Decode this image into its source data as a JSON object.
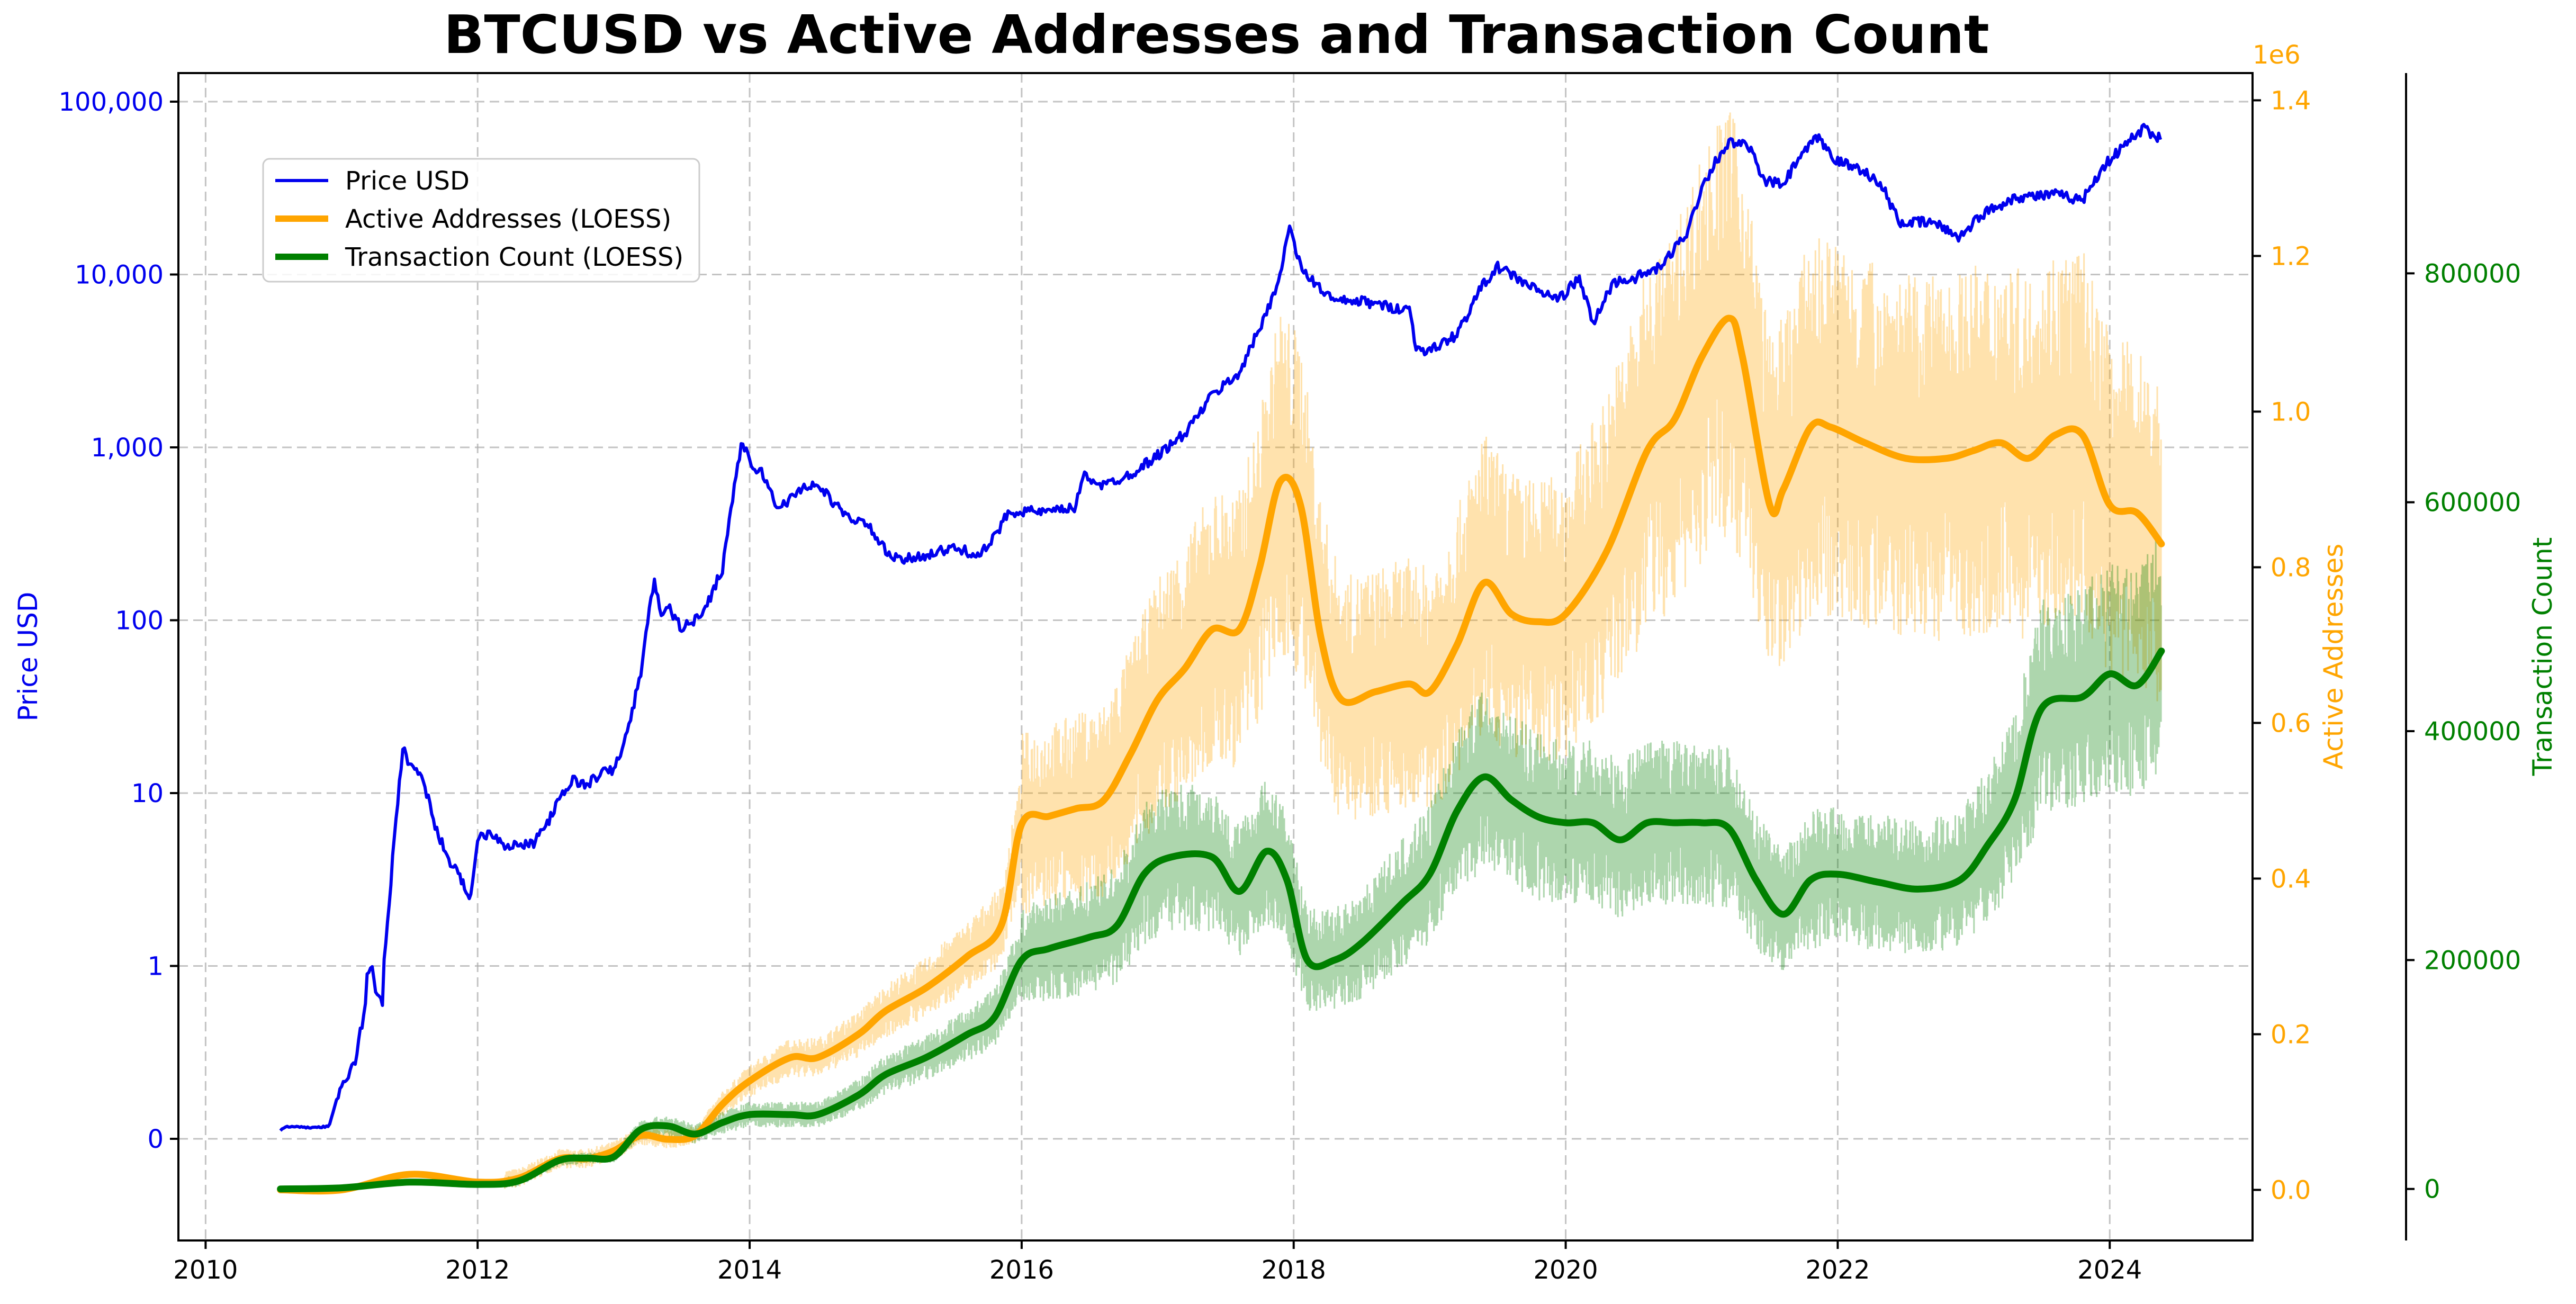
{
  "chart_data": {
    "type": "line",
    "title": "BTCUSD vs Active Addresses and Transaction Count",
    "xlabel": "",
    "x_ticks": [
      "2010",
      "2012",
      "2014",
      "2016",
      "2018",
      "2020",
      "2022",
      "2024"
    ],
    "xlim": [
      2009.8,
      2025.05
    ],
    "axes": {
      "price": {
        "label": "Price USD",
        "scale": "log",
        "ticks": [
          "0",
          "1",
          "10",
          "100",
          "1,000",
          "10,000",
          "100,000"
        ],
        "color": "#0000ee"
      },
      "active_addresses": {
        "label": "Active Addresses",
        "offset_text": "1e6",
        "ticks": [
          "0.0",
          "0.2",
          "0.4",
          "0.6",
          "0.8",
          "1.0",
          "1.2",
          "1.4"
        ],
        "ylim": [
          -0.065,
          1.435
        ],
        "color": "#ffa500"
      },
      "transaction_count": {
        "label": "Transaction Count",
        "ticks": [
          "0",
          "200000",
          "400000",
          "600000",
          "800000"
        ],
        "ylim": [
          -45000,
          975000
        ],
        "color": "#008000"
      }
    },
    "legend": {
      "placement": "upper-left",
      "entries": [
        "Price USD",
        "Active Addresses (LOESS)",
        "Transaction Count (LOESS)"
      ]
    },
    "series": [
      {
        "name": "Price USD",
        "axis": "price",
        "color": "#0000ee",
        "points": [
          [
            2010.55,
            0.05
          ],
          [
            2010.6,
            0.07
          ],
          [
            2010.75,
            0.065
          ],
          [
            2010.9,
            0.07
          ],
          [
            2010.95,
            0.2
          ],
          [
            2011.0,
            0.3
          ],
          [
            2011.1,
            0.45
          ],
          [
            2011.2,
            1.0
          ],
          [
            2011.3,
            0.8
          ],
          [
            2011.4,
            7
          ],
          [
            2011.45,
            18
          ],
          [
            2011.5,
            15
          ],
          [
            2011.6,
            12
          ],
          [
            2011.7,
            6
          ],
          [
            2011.8,
            4
          ],
          [
            2011.95,
            2.5
          ],
          [
            2012.0,
            5.5
          ],
          [
            2012.1,
            6
          ],
          [
            2012.2,
            5
          ],
          [
            2012.4,
            5
          ],
          [
            2012.5,
            6.5
          ],
          [
            2012.6,
            9
          ],
          [
            2012.7,
            12
          ],
          [
            2012.8,
            11
          ],
          [
            2012.9,
            13
          ],
          [
            2013.0,
            13.5
          ],
          [
            2013.1,
            22
          ],
          [
            2013.2,
            50
          ],
          [
            2013.3,
            180
          ],
          [
            2013.35,
            100
          ],
          [
            2013.4,
            120
          ],
          [
            2013.5,
            90
          ],
          [
            2013.6,
            100
          ],
          [
            2013.7,
            130
          ],
          [
            2013.8,
            200
          ],
          [
            2013.9,
            700
          ],
          [
            2013.95,
            1100
          ],
          [
            2014.0,
            800
          ],
          [
            2014.1,
            700
          ],
          [
            2014.2,
            450
          ],
          [
            2014.3,
            500
          ],
          [
            2014.4,
            600
          ],
          [
            2014.5,
            600
          ],
          [
            2014.6,
            500
          ],
          [
            2014.7,
            400
          ],
          [
            2014.8,
            380
          ],
          [
            2014.9,
            330
          ],
          [
            2015.0,
            250
          ],
          [
            2015.1,
            220
          ],
          [
            2015.3,
            240
          ],
          [
            2015.5,
            260
          ],
          [
            2015.7,
            240
          ],
          [
            2015.8,
            300
          ],
          [
            2015.9,
            420
          ],
          [
            2016.0,
            430
          ],
          [
            2016.2,
            420
          ],
          [
            2016.4,
            450
          ],
          [
            2016.45,
            700
          ],
          [
            2016.6,
            600
          ],
          [
            2016.8,
            700
          ],
          [
            2017.0,
            900
          ],
          [
            2017.2,
            1200
          ],
          [
            2017.4,
            2000
          ],
          [
            2017.6,
            2700
          ],
          [
            2017.7,
            4000
          ],
          [
            2017.8,
            6000
          ],
          [
            2017.9,
            10000
          ],
          [
            2017.97,
            19000
          ],
          [
            2018.05,
            11000
          ],
          [
            2018.15,
            9000
          ],
          [
            2018.3,
            7000
          ],
          [
            2018.5,
            7000
          ],
          [
            2018.7,
            6500
          ],
          [
            2018.85,
            6300
          ],
          [
            2018.9,
            3800
          ],
          [
            2019.0,
            3600
          ],
          [
            2019.2,
            4500
          ],
          [
            2019.4,
            9000
          ],
          [
            2019.5,
            11000
          ],
          [
            2019.6,
            10000
          ],
          [
            2019.8,
            8000
          ],
          [
            2019.95,
            7200
          ],
          [
            2020.1,
            9500
          ],
          [
            2020.2,
            5200
          ],
          [
            2020.35,
            9000
          ],
          [
            2020.5,
            9500
          ],
          [
            2020.7,
            11000
          ],
          [
            2020.9,
            18000
          ],
          [
            2021.0,
            32000
          ],
          [
            2021.1,
            45000
          ],
          [
            2021.2,
            58000
          ],
          [
            2021.35,
            55000
          ],
          [
            2021.45,
            35000
          ],
          [
            2021.6,
            33000
          ],
          [
            2021.7,
            45000
          ],
          [
            2021.85,
            62000
          ],
          [
            2022.0,
            45000
          ],
          [
            2022.2,
            40000
          ],
          [
            2022.35,
            30000
          ],
          [
            2022.45,
            20000
          ],
          [
            2022.7,
            20000
          ],
          [
            2022.9,
            16500
          ],
          [
            2023.05,
            22000
          ],
          [
            2023.3,
            28000
          ],
          [
            2023.6,
            29000
          ],
          [
            2023.8,
            27000
          ],
          [
            2023.95,
            42000
          ],
          [
            2024.15,
            60000
          ],
          [
            2024.25,
            70000
          ],
          [
            2024.35,
            63000
          ],
          [
            2024.38,
            62000
          ]
        ]
      },
      {
        "name": "Active Addresses (LOESS)",
        "axis": "active_addresses",
        "color": "#ffa500",
        "points": [
          [
            2010.55,
            0.0
          ],
          [
            2011.0,
            0.0
          ],
          [
            2011.5,
            0.02
          ],
          [
            2012.0,
            0.01
          ],
          [
            2012.3,
            0.015
          ],
          [
            2012.6,
            0.04
          ],
          [
            2012.8,
            0.04
          ],
          [
            2013.0,
            0.05
          ],
          [
            2013.2,
            0.07
          ],
          [
            2013.4,
            0.065
          ],
          [
            2013.6,
            0.07
          ],
          [
            2013.8,
            0.11
          ],
          [
            2014.0,
            0.14
          ],
          [
            2014.3,
            0.17
          ],
          [
            2014.5,
            0.17
          ],
          [
            2014.8,
            0.2
          ],
          [
            2015.0,
            0.23
          ],
          [
            2015.3,
            0.26
          ],
          [
            2015.6,
            0.3
          ],
          [
            2015.85,
            0.34
          ],
          [
            2016.0,
            0.47
          ],
          [
            2016.2,
            0.48
          ],
          [
            2016.4,
            0.49
          ],
          [
            2016.6,
            0.5
          ],
          [
            2016.8,
            0.56
          ],
          [
            2017.0,
            0.63
          ],
          [
            2017.2,
            0.67
          ],
          [
            2017.4,
            0.72
          ],
          [
            2017.6,
            0.72
          ],
          [
            2017.75,
            0.8
          ],
          [
            2017.9,
            0.91
          ],
          [
            2018.05,
            0.88
          ],
          [
            2018.2,
            0.71
          ],
          [
            2018.35,
            0.63
          ],
          [
            2018.6,
            0.64
          ],
          [
            2018.85,
            0.65
          ],
          [
            2019.0,
            0.64
          ],
          [
            2019.2,
            0.7
          ],
          [
            2019.4,
            0.78
          ],
          [
            2019.6,
            0.74
          ],
          [
            2019.8,
            0.73
          ],
          [
            2020.0,
            0.74
          ],
          [
            2020.3,
            0.82
          ],
          [
            2020.6,
            0.95
          ],
          [
            2020.8,
            0.99
          ],
          [
            2021.0,
            1.07
          ],
          [
            2021.2,
            1.12
          ],
          [
            2021.3,
            1.07
          ],
          [
            2021.5,
            0.88
          ],
          [
            2021.6,
            0.9
          ],
          [
            2021.8,
            0.98
          ],
          [
            2021.95,
            0.98
          ],
          [
            2022.2,
            0.96
          ],
          [
            2022.5,
            0.94
          ],
          [
            2022.8,
            0.94
          ],
          [
            2023.0,
            0.95
          ],
          [
            2023.2,
            0.96
          ],
          [
            2023.4,
            0.94
          ],
          [
            2023.6,
            0.97
          ],
          [
            2023.8,
            0.97
          ],
          [
            2024.0,
            0.88
          ],
          [
            2024.2,
            0.87
          ],
          [
            2024.38,
            0.83
          ]
        ]
      },
      {
        "name": "Transaction Count (LOESS)",
        "axis": "transaction_count",
        "color": "#008000",
        "points": [
          [
            2010.55,
            0
          ],
          [
            2011.0,
            1000
          ],
          [
            2011.5,
            6000
          ],
          [
            2012.0,
            4000
          ],
          [
            2012.3,
            7000
          ],
          [
            2012.6,
            25000
          ],
          [
            2012.8,
            27000
          ],
          [
            2013.0,
            28000
          ],
          [
            2013.2,
            52000
          ],
          [
            2013.4,
            55000
          ],
          [
            2013.6,
            48000
          ],
          [
            2013.8,
            58000
          ],
          [
            2014.0,
            65000
          ],
          [
            2014.3,
            65000
          ],
          [
            2014.5,
            65000
          ],
          [
            2014.8,
            82000
          ],
          [
            2015.0,
            100000
          ],
          [
            2015.3,
            115000
          ],
          [
            2015.6,
            135000
          ],
          [
            2015.8,
            150000
          ],
          [
            2016.0,
            200000
          ],
          [
            2016.2,
            210000
          ],
          [
            2016.5,
            220000
          ],
          [
            2016.7,
            230000
          ],
          [
            2016.9,
            275000
          ],
          [
            2017.1,
            290000
          ],
          [
            2017.4,
            290000
          ],
          [
            2017.6,
            260000
          ],
          [
            2017.8,
            295000
          ],
          [
            2017.95,
            270000
          ],
          [
            2018.1,
            200000
          ],
          [
            2018.3,
            200000
          ],
          [
            2018.5,
            215000
          ],
          [
            2018.8,
            250000
          ],
          [
            2019.0,
            275000
          ],
          [
            2019.2,
            330000
          ],
          [
            2019.4,
            360000
          ],
          [
            2019.6,
            340000
          ],
          [
            2019.8,
            325000
          ],
          [
            2020.0,
            320000
          ],
          [
            2020.2,
            320000
          ],
          [
            2020.4,
            305000
          ],
          [
            2020.6,
            320000
          ],
          [
            2020.8,
            320000
          ],
          [
            2021.0,
            320000
          ],
          [
            2021.2,
            315000
          ],
          [
            2021.4,
            270000
          ],
          [
            2021.6,
            240000
          ],
          [
            2021.8,
            270000
          ],
          [
            2022.0,
            275000
          ],
          [
            2022.3,
            268000
          ],
          [
            2022.6,
            262000
          ],
          [
            2022.9,
            270000
          ],
          [
            2023.1,
            300000
          ],
          [
            2023.3,
            340000
          ],
          [
            2023.5,
            420000
          ],
          [
            2023.8,
            430000
          ],
          [
            2024.0,
            450000
          ],
          [
            2024.2,
            440000
          ],
          [
            2024.38,
            470000
          ]
        ]
      }
    ]
  }
}
